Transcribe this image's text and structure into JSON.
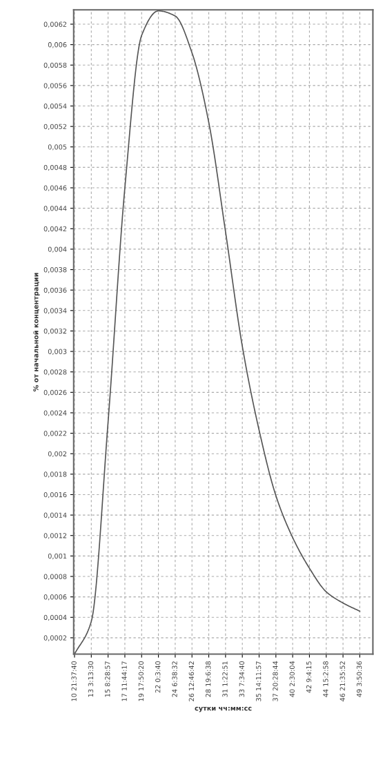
{
  "chart_data": {
    "type": "line",
    "xlabel": "сутки чч:мм:сс",
    "ylabel": "% от начальной концентрации",
    "categories": [
      "10 21:37:40",
      "13 3:13:30",
      "15 8:28:57",
      "17 11:44:17",
      "19 17:50:20",
      "22 0:3:40",
      "24 6:38:32",
      "26 12:46:42",
      "28 19:6:38",
      "31 1:22:51",
      "33 7:34:40",
      "35 14:11:57",
      "37 20:28:44",
      "40 2:30:04",
      "42 9:4:15",
      "44 15:2:58",
      "46 21:35:52",
      "49 3:50:36"
    ],
    "series": [
      {
        "color": "#555555",
        "values": [
          4e-05,
          0.00036,
          0.00231,
          0.0046,
          0.00609,
          0.00633,
          0.00628,
          0.00592,
          0.00524,
          0.00417,
          0.00305,
          0.00223,
          0.00159,
          0.00118,
          0.00088,
          0.00065,
          0.00054,
          0.00046
        ]
      }
    ],
    "ylim": [
      4e-05,
      0.00634
    ],
    "yticks": [
      {
        "value": 0.0002,
        "label": "0,0002"
      },
      {
        "value": 0.0004,
        "label": "0,0004"
      },
      {
        "value": 0.0006,
        "label": "0,0006"
      },
      {
        "value": 0.0008,
        "label": "0,0008"
      },
      {
        "value": 0.001,
        "label": "0,001"
      },
      {
        "value": 0.0012,
        "label": "0,0012"
      },
      {
        "value": 0.0014,
        "label": "0,0014"
      },
      {
        "value": 0.0016,
        "label": "0,0016"
      },
      {
        "value": 0.0018,
        "label": "0,0018"
      },
      {
        "value": 0.002,
        "label": "0,002"
      },
      {
        "value": 0.0022,
        "label": "0,0022"
      },
      {
        "value": 0.0024,
        "label": "0,0024"
      },
      {
        "value": 0.0026,
        "label": "0,0026"
      },
      {
        "value": 0.0028,
        "label": "0,0028"
      },
      {
        "value": 0.003,
        "label": "0,003"
      },
      {
        "value": 0.0032,
        "label": "0,0032"
      },
      {
        "value": 0.0034,
        "label": "0,0034"
      },
      {
        "value": 0.0036,
        "label": "0,0036"
      },
      {
        "value": 0.0038,
        "label": "0,0038"
      },
      {
        "value": 0.004,
        "label": "0,004"
      },
      {
        "value": 0.0042,
        "label": "0,0042"
      },
      {
        "value": 0.0044,
        "label": "0,0044"
      },
      {
        "value": 0.0046,
        "label": "0,0046"
      },
      {
        "value": 0.0048,
        "label": "0,0048"
      },
      {
        "value": 0.005,
        "label": "0,005"
      },
      {
        "value": 0.0052,
        "label": "0,0052"
      },
      {
        "value": 0.0054,
        "label": "0,0054"
      },
      {
        "value": 0.0056,
        "label": "0,0056"
      },
      {
        "value": 0.0058,
        "label": "0,0058"
      },
      {
        "value": 0.006,
        "label": "0,006"
      },
      {
        "value": 0.0062,
        "label": "0,0062"
      }
    ],
    "grid": true,
    "line_style": "solid",
    "marker": "none"
  }
}
